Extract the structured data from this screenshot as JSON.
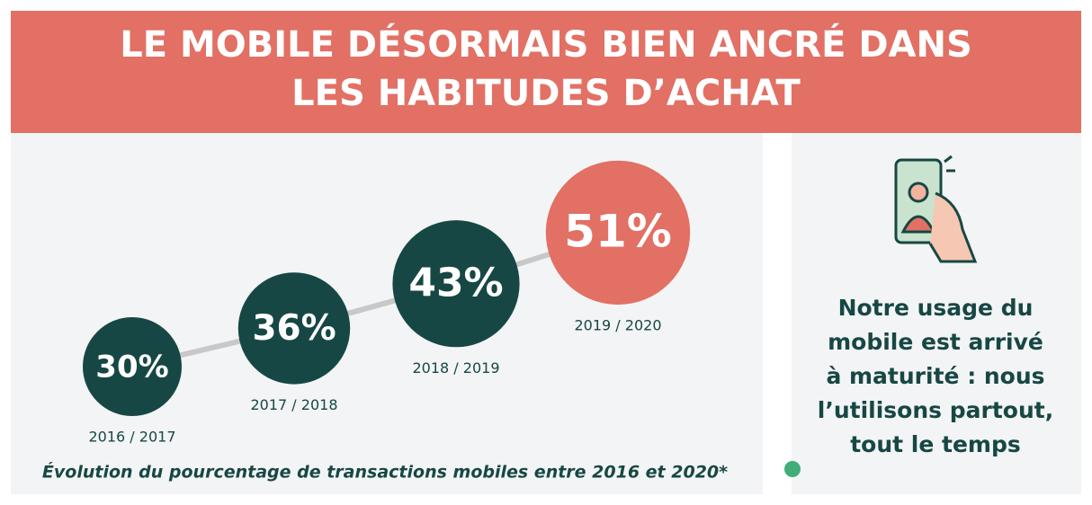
{
  "header": {
    "title_lines": [
      "LE MOBILE DÉSORMAIS BIEN ANCRÉ DANS",
      "LES HABITUDES D’ACHAT"
    ]
  },
  "chart_data": {
    "type": "bubble-progression",
    "categories": [
      "2016 / 2017",
      "2017 / 2018",
      "2018 / 2019",
      "2019 / 2020"
    ],
    "values": [
      30,
      36,
      43,
      51
    ],
    "value_labels": [
      "30%",
      "36%",
      "43%",
      "51%"
    ],
    "colors": [
      "#174744",
      "#174744",
      "#174744",
      "#e27064"
    ],
    "caption": "Évolution du pourcentage de transactions mobiles entre 2016 et 2020*"
  },
  "side_panel": {
    "lines": [
      "Notre usage du",
      "mobile est arrivé",
      "à maturité : nous",
      "l’utilisons partout,",
      "tout le temps"
    ]
  }
}
